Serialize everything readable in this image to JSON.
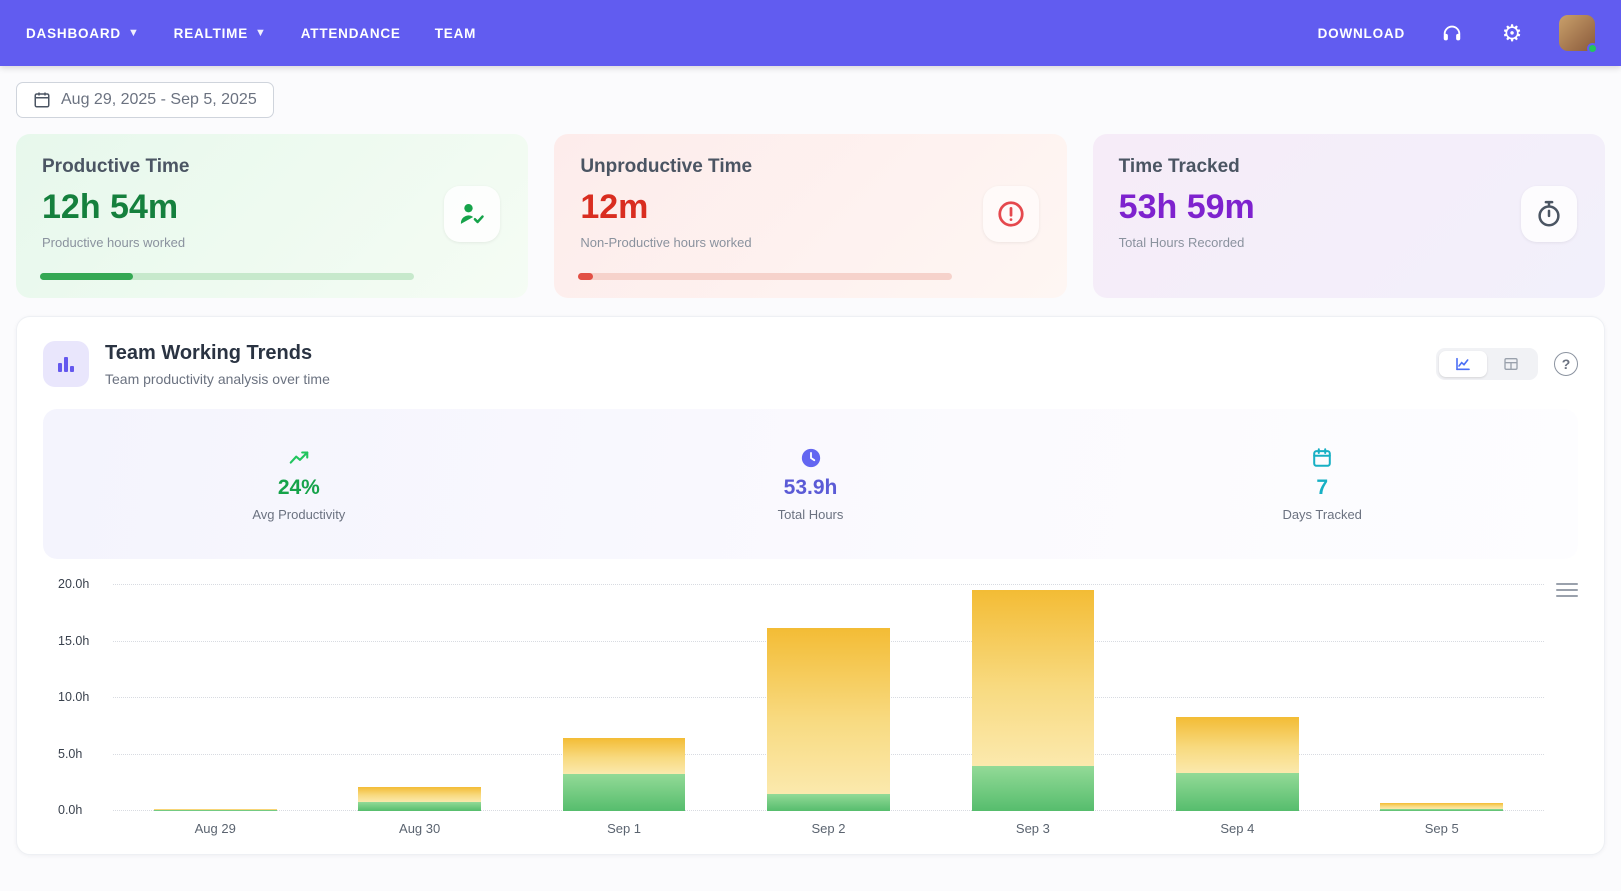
{
  "navbar": {
    "bg_color": "#615CF0",
    "items": [
      {
        "label": "DASHBOARD",
        "dropdown": true
      },
      {
        "label": "REALTIME",
        "dropdown": true
      },
      {
        "label": "ATTENDANCE",
        "dropdown": false
      },
      {
        "label": "TEAM",
        "dropdown": false
      }
    ],
    "download_label": "DOWNLOAD",
    "right_icons": [
      "headset-icon",
      "gear-icon",
      "user-avatar"
    ]
  },
  "date_range": {
    "value": "Aug 29, 2025 - Sep 5, 2025"
  },
  "stat_cards": [
    {
      "title": "Productive Time",
      "value": "12h 54m",
      "subtitle": "Productive hours worked",
      "icon": "user-check-icon",
      "accent": "#15803d",
      "progress_percent": 25
    },
    {
      "title": "Unproductive Time",
      "value": "12m",
      "subtitle": "Non-Productive hours worked",
      "icon": "alert-circle-icon",
      "accent": "#d92d20",
      "progress_percent": 4
    },
    {
      "title": "Time Tracked",
      "value": "53h 59m",
      "subtitle": "Total Hours Recorded",
      "icon": "stopwatch-icon",
      "accent": "#7e22ce",
      "progress_percent": null
    }
  ],
  "trends": {
    "title": "Team Working Trends",
    "subtitle": "Team productivity analysis over time",
    "view_toggle": [
      "chart-view",
      "table-view"
    ],
    "summary_stats": [
      {
        "value": "24%",
        "label": "Avg Productivity",
        "icon": "trending-up-icon",
        "color": "#16a34a"
      },
      {
        "value": "53.9h",
        "label": "Total Hours",
        "icon": "clock-icon",
        "color": "#5b5bd6"
      },
      {
        "value": "7",
        "label": "Days Tracked",
        "icon": "calendar-icon",
        "color": "#17b0c4"
      }
    ]
  },
  "chart_data": {
    "type": "bar",
    "stacked": true,
    "title": "",
    "xlabel": "",
    "ylabel": "hours",
    "ylim": [
      0,
      20
    ],
    "grid": "dotted-horizontal",
    "legend": "none",
    "categories": [
      "Aug 29",
      "Aug 30",
      "Sep 1",
      "Sep 2",
      "Sep 3",
      "Sep 4",
      "Sep 5"
    ],
    "series": [
      {
        "name": "green-bottom-segment",
        "color": "#56bd6d",
        "values": [
          0.05,
          0.8,
          3.3,
          1.5,
          4.0,
          3.4,
          0.2
        ]
      },
      {
        "name": "yellow-top-segment",
        "color": "#f3bc35",
        "values": [
          0.15,
          1.3,
          3.2,
          14.7,
          15.6,
          4.9,
          0.5
        ]
      }
    ],
    "yticks": [
      {
        "v": 0,
        "label": "0.0h"
      },
      {
        "v": 5,
        "label": "5.0h"
      },
      {
        "v": 10,
        "label": "10.0h"
      },
      {
        "v": 15,
        "label": "15.0h"
      },
      {
        "v": 20,
        "label": "20.0h"
      }
    ]
  }
}
